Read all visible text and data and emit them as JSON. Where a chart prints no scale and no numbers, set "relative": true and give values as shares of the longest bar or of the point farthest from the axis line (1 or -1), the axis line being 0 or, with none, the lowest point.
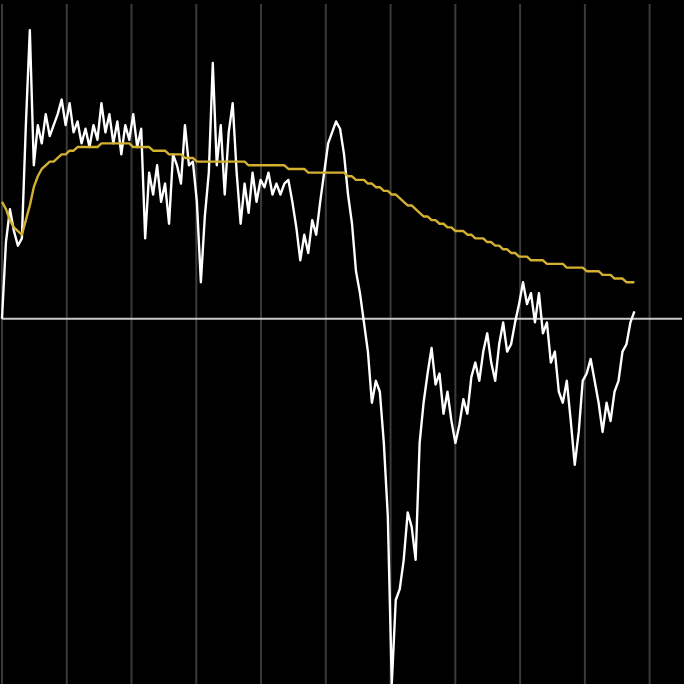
{
  "chart_data": {
    "type": "line",
    "relative": true,
    "grid": true,
    "tick_labels": false,
    "line_style": "solid",
    "categories": [
      null,
      null,
      null,
      null,
      null,
      null,
      null,
      null,
      null,
      null,
      null,
      null,
      null,
      null,
      null,
      null,
      null,
      null,
      null,
      null,
      null,
      null,
      null,
      null,
      null,
      null,
      null,
      null,
      null,
      null,
      null,
      null,
      null,
      null,
      null,
      null,
      null,
      null,
      null,
      null,
      null,
      null,
      null,
      null,
      null,
      null,
      null,
      null,
      null,
      null,
      null,
      null,
      null,
      null,
      null,
      null,
      null,
      null,
      null,
      null,
      null,
      null,
      null,
      null,
      null,
      null,
      null,
      null,
      null,
      null,
      null,
      null,
      null,
      null,
      null,
      null,
      null,
      null,
      null,
      null,
      null,
      null,
      null,
      null,
      null,
      null,
      null,
      null,
      null,
      null,
      null,
      null,
      null,
      null,
      null,
      null,
      null,
      null,
      null,
      null,
      null,
      null,
      null,
      null,
      null,
      null,
      null,
      null,
      null,
      null,
      null,
      null,
      null,
      null,
      null,
      null,
      null,
      null,
      null,
      null,
      null,
      null,
      null,
      null,
      null,
      null,
      null,
      null,
      null,
      null,
      null,
      null,
      null,
      null,
      null,
      null,
      null,
      null,
      null,
      null,
      null,
      null,
      null,
      null,
      null,
      null,
      null,
      null,
      null,
      null,
      null,
      null,
      null,
      null,
      null,
      null,
      null,
      null,
      null,
      null
    ],
    "series": [
      {
        "color": "#ffffff",
        "values": [
          0,
          0.21,
          0.3,
          0.24,
          0.2,
          0.22,
          0.53,
          0.79,
          0.42,
          0.53,
          0.48,
          0.56,
          0.5,
          0.53,
          0.56,
          0.6,
          0.53,
          0.59,
          0.51,
          0.54,
          0.48,
          0.52,
          0.47,
          0.53,
          0.49,
          0.59,
          0.51,
          0.56,
          0.48,
          0.54,
          0.45,
          0.53,
          0.49,
          0.56,
          0.47,
          0.52,
          0.22,
          0.4,
          0.34,
          0.42,
          0.32,
          0.37,
          0.26,
          0.45,
          0.42,
          0.37,
          0.53,
          0.42,
          0.43,
          0.32,
          0.1,
          0.28,
          0.4,
          0.7,
          0.42,
          0.53,
          0.34,
          0.51,
          0.59,
          0.4,
          0.26,
          0.37,
          0.29,
          0.4,
          0.32,
          0.38,
          0.36,
          0.4,
          0.34,
          0.37,
          0.34,
          0.37,
          0.38,
          0.32,
          0.25,
          0.16,
          0.23,
          0.18,
          0.27,
          0.23,
          0.32,
          0.4,
          0.48,
          0.51,
          0.54,
          0.52,
          0.45,
          0.34,
          0.26,
          0.13,
          0.07,
          -0.01,
          -0.09,
          -0.23,
          -0.17,
          -0.2,
          -0.34,
          -0.54,
          -1,
          -0.77,
          -0.74,
          -0.66,
          -0.53,
          -0.57,
          -0.66,
          -0.34,
          -0.23,
          -0.15,
          -0.08,
          -0.18,
          -0.15,
          -0.26,
          -0.2,
          -0.28,
          -0.34,
          -0.29,
          -0.22,
          -0.26,
          -0.16,
          -0.12,
          -0.17,
          -0.09,
          -0.04,
          -0.12,
          -0.17,
          -0.07,
          -0.01,
          -0.09,
          -0.07,
          -0.01,
          0.04,
          0.1,
          0.04,
          0.07,
          -0.01,
          0.07,
          -0.04,
          -0.01,
          -0.12,
          -0.09,
          -0.2,
          -0.23,
          -0.17,
          -0.28,
          -0.4,
          -0.31,
          -0.17,
          -0.15,
          -0.11,
          -0.17,
          -0.23,
          -0.31,
          -0.23,
          -0.28,
          -0.2,
          -0.17,
          -0.09,
          -0.07,
          -0.01,
          0.02
        ]
      },
      {
        "color": "#d4b030",
        "values": [
          0.32,
          0.3,
          0.27,
          0.25,
          0.24,
          0.23,
          0.27,
          0.31,
          0.36,
          0.39,
          0.41,
          0.42,
          0.43,
          0.43,
          0.44,
          0.45,
          0.45,
          0.46,
          0.46,
          0.47,
          0.47,
          0.47,
          0.47,
          0.47,
          0.47,
          0.48,
          0.48,
          0.48,
          0.48,
          0.48,
          0.48,
          0.48,
          0.48,
          0.47,
          0.47,
          0.47,
          0.47,
          0.47,
          0.46,
          0.46,
          0.46,
          0.46,
          0.45,
          0.45,
          0.45,
          0.45,
          0.44,
          0.44,
          0.44,
          0.43,
          0.43,
          0.43,
          0.43,
          0.43,
          0.43,
          0.43,
          0.43,
          0.43,
          0.43,
          0.43,
          0.43,
          0.43,
          0.42,
          0.42,
          0.42,
          0.42,
          0.42,
          0.42,
          0.42,
          0.42,
          0.42,
          0.42,
          0.41,
          0.41,
          0.41,
          0.41,
          0.41,
          0.4,
          0.4,
          0.4,
          0.4,
          0.4,
          0.4,
          0.4,
          0.4,
          0.4,
          0.4,
          0.39,
          0.39,
          0.38,
          0.38,
          0.38,
          0.37,
          0.37,
          0.36,
          0.36,
          0.35,
          0.35,
          0.34,
          0.34,
          0.33,
          0.32,
          0.31,
          0.31,
          0.3,
          0.29,
          0.28,
          0.28,
          0.27,
          0.27,
          0.26,
          0.26,
          0.25,
          0.25,
          0.24,
          0.24,
          0.24,
          0.23,
          0.23,
          0.22,
          0.22,
          0.22,
          0.21,
          0.21,
          0.2,
          0.2,
          0.19,
          0.19,
          0.18,
          0.18,
          0.17,
          0.17,
          0.17,
          0.16,
          0.16,
          0.16,
          0.16,
          0.15,
          0.15,
          0.15,
          0.15,
          0.15,
          0.14,
          0.14,
          0.14,
          0.14,
          0.14,
          0.13,
          0.13,
          0.13,
          0.13,
          0.12,
          0.12,
          0.12,
          0.11,
          0.11,
          0.11,
          0.1,
          0.1,
          0.1
        ]
      }
    ]
  }
}
